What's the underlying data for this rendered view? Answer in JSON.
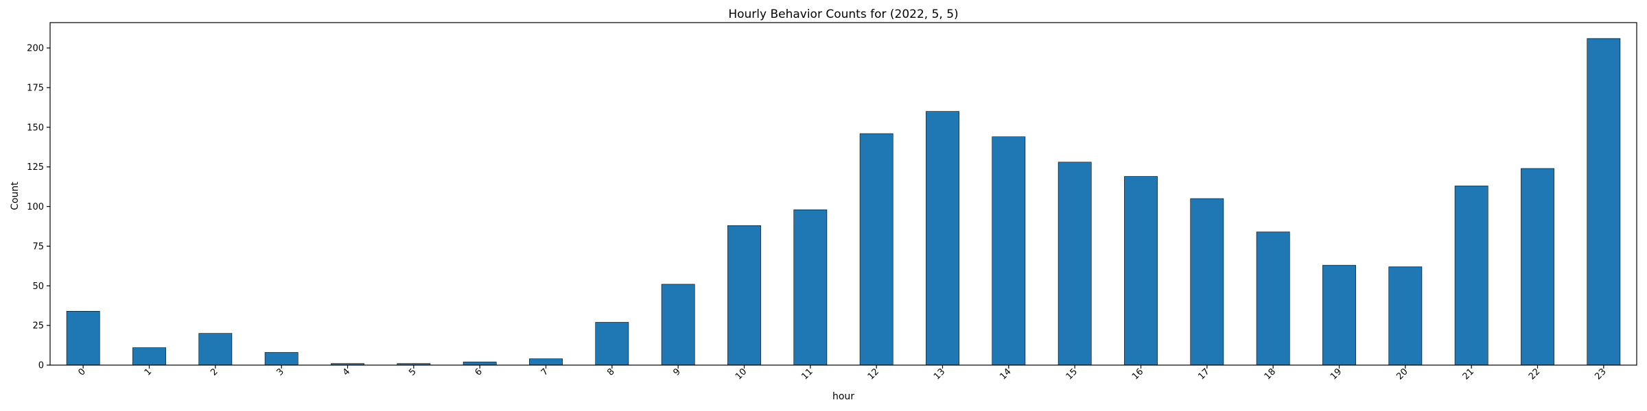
{
  "chart_data": {
    "type": "bar",
    "title": "Hourly Behavior Counts for (2022, 5, 5)",
    "xlabel": "hour",
    "ylabel": "Count",
    "categories": [
      "0",
      "1",
      "2",
      "3",
      "4",
      "5",
      "6",
      "7",
      "8",
      "9",
      "10",
      "11",
      "12",
      "13",
      "14",
      "15",
      "16",
      "17",
      "18",
      "19",
      "20",
      "21",
      "22",
      "23"
    ],
    "values": [
      34,
      11,
      20,
      8,
      1,
      1,
      2,
      4,
      27,
      51,
      88,
      98,
      146,
      160,
      144,
      128,
      119,
      105,
      84,
      63,
      62,
      113,
      124,
      206
    ],
    "ylim": [
      0,
      216
    ],
    "yticks": [
      0,
      25,
      50,
      75,
      100,
      125,
      150,
      175,
      200
    ],
    "xtick_rotation": 45,
    "grid": false,
    "bar_color": "#1f77b4"
  }
}
